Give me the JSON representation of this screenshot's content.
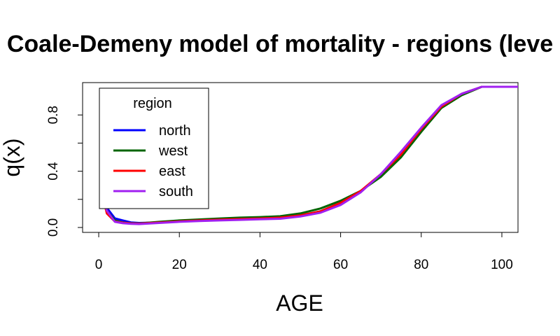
{
  "chart_data": {
    "type": "line",
    "title": "Coale-Demeny model of mortality - regions (leve",
    "xlabel": "AGE",
    "ylabel": "q(x)",
    "xlim": [
      -4,
      104
    ],
    "ylim": [
      -0.035,
      1.03
    ],
    "x_ticks": [
      0,
      20,
      40,
      60,
      80,
      100
    ],
    "y_ticks": [
      0.0,
      0.4,
      0.8
    ],
    "x_tick_labels": [
      "0",
      "20",
      "40",
      "60",
      "80",
      "100"
    ],
    "y_tick_labels": [
      "0.0",
      "0.4",
      "0.8"
    ],
    "grid": false,
    "legend": {
      "title": "region",
      "position": "top-left"
    },
    "x": [
      1,
      2,
      4,
      6,
      8,
      10,
      15,
      20,
      25,
      30,
      35,
      40,
      45,
      50,
      55,
      60,
      65,
      70,
      75,
      80,
      85,
      90,
      95,
      100,
      105
    ],
    "series": [
      {
        "name": "north",
        "color": "#0000ff",
        "values": [
          0.22,
          0.14,
          0.065,
          0.05,
          0.036,
          0.032,
          0.036,
          0.043,
          0.049,
          0.054,
          0.058,
          0.062,
          0.068,
          0.085,
          0.115,
          0.175,
          0.26,
          0.37,
          0.52,
          0.7,
          0.86,
          0.95,
          1.0,
          1.0,
          1.0
        ]
      },
      {
        "name": "west",
        "color": "#006400",
        "values": [
          0.2,
          0.12,
          0.05,
          0.035,
          0.03,
          0.028,
          0.04,
          0.05,
          0.057,
          0.064,
          0.07,
          0.074,
          0.08,
          0.1,
          0.135,
          0.19,
          0.26,
          0.36,
          0.5,
          0.68,
          0.85,
          0.94,
          1.0,
          1.0,
          1.0
        ]
      },
      {
        "name": "east",
        "color": "#ff0000",
        "values": [
          0.22,
          0.1,
          0.042,
          0.034,
          0.029,
          0.027,
          0.035,
          0.043,
          0.05,
          0.056,
          0.06,
          0.064,
          0.07,
          0.086,
          0.115,
          0.175,
          0.26,
          0.38,
          0.52,
          0.7,
          0.86,
          0.95,
          1.0,
          1.0,
          1.0
        ]
      },
      {
        "name": "south",
        "color": "#a020f0",
        "values": [
          0.21,
          0.12,
          0.04,
          0.03,
          0.026,
          0.024,
          0.032,
          0.04,
          0.046,
          0.05,
          0.054,
          0.058,
          0.062,
          0.078,
          0.105,
          0.16,
          0.25,
          0.38,
          0.54,
          0.71,
          0.87,
          0.95,
          1.0,
          1.0,
          1.0
        ]
      }
    ]
  }
}
